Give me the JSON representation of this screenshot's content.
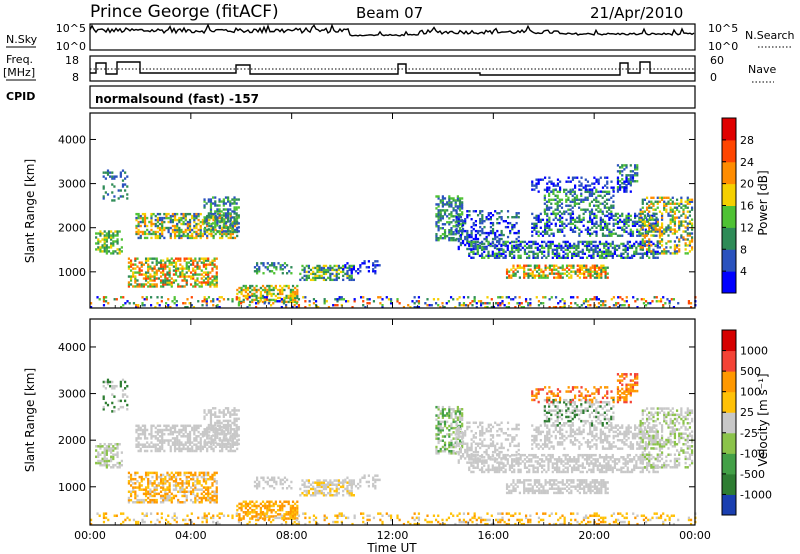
{
  "header": {
    "station": "Prince George (fitACF)",
    "beam": "Beam 07",
    "date": "21/Apr/2010"
  },
  "nsky_panel": {
    "left_label": "N.Sky",
    "left_ticks": [
      "10^5",
      "10^0"
    ],
    "right_ticks": [
      "10^5",
      "10^0"
    ],
    "right_label": "N.Search"
  },
  "freq_panel": {
    "left_label_1": "Freq.",
    "left_label_2": "[MHz]",
    "left_ticks": [
      "18",
      "8"
    ],
    "right_ticks": [
      "60",
      "0"
    ],
    "right_label": "Nave"
  },
  "cpid_panel": {
    "label": "CPID",
    "text": "normalsound (fast) -157"
  },
  "chart_data": [
    {
      "type": "heatmap",
      "panel": "power",
      "ylabel": "Slant Range [km]",
      "yticks": [
        1000,
        2000,
        3000,
        4000
      ],
      "ylim": [
        180,
        4600
      ],
      "xticks": [
        "00:00",
        "04:00",
        "08:00",
        "12:00",
        "16:00",
        "20:00",
        "00:00"
      ],
      "colorbar": {
        "label": "Power [dB]",
        "ticks": [
          "4",
          "8",
          "12",
          "16",
          "20",
          "24",
          "28"
        ],
        "colors": [
          "#0000ff",
          "#2a52be",
          "#2e8b57",
          "#4fc234",
          "#f5d000",
          "#ff8c00",
          "#ff4500",
          "#e00000"
        ]
      }
    },
    {
      "type": "heatmap",
      "panel": "velocity",
      "ylabel": "Slant Range [km]",
      "yticks": [
        1000,
        2000,
        3000,
        4000
      ],
      "ylim": [
        180,
        4600
      ],
      "xticks": [
        "00:00",
        "04:00",
        "08:00",
        "12:00",
        "16:00",
        "20:00",
        "00:00"
      ],
      "xlabel": "Time UT",
      "colorbar": {
        "label": "Velocity [m s⁻¹]",
        "ticks": [
          "1000",
          "500",
          "100",
          "25",
          "-25",
          "-100",
          "-500",
          "-1000"
        ],
        "colors": [
          "#1a3fb0",
          "#2e7d32",
          "#43a047",
          "#8bc34a",
          "#c8c8c8",
          "#ffc107",
          "#ff9800",
          "#f44336",
          "#d50000"
        ]
      }
    }
  ]
}
